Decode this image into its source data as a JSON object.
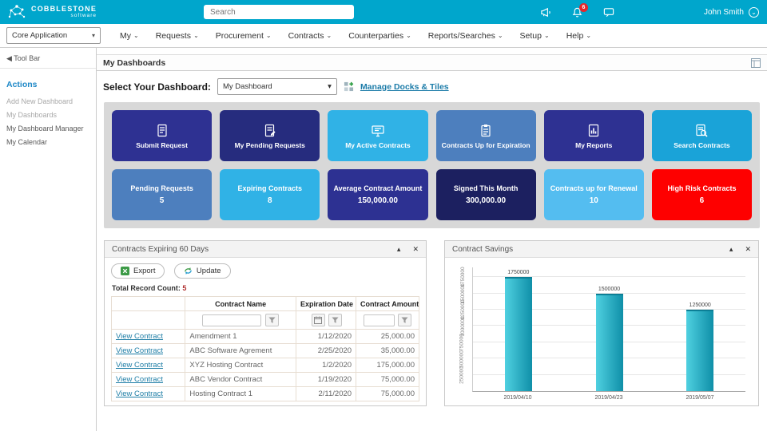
{
  "icons": {
    "caret_down": "▾",
    "nav_caret": "⌄",
    "collapse": "▴",
    "close": "✕",
    "back_arrow": "◀",
    "user_chevron": "⌄"
  },
  "header": {
    "brand_line1": "COBBLESTONE",
    "brand_line2": "software",
    "search_placeholder": "Search",
    "notification_count": "6",
    "user_name": "John Smith"
  },
  "nav": {
    "app_selector_value": "Core Application",
    "items": [
      "My",
      "Requests",
      "Procurement",
      "Contracts",
      "Counterparties",
      "Reports/Searches",
      "Setup",
      "Help"
    ]
  },
  "sidebar": {
    "toolbar_label": "Tool Bar",
    "actions_title": "Actions",
    "links": [
      "Add New Dashboard",
      "My Dashboards",
      "My Dashboard Manager",
      "My Calendar"
    ]
  },
  "dashboard": {
    "page_title": "My Dashboards",
    "select_label": "Select Your Dashboard:",
    "selected_dashboard": "My Dashboard",
    "manage_link": "Manage Docks & Tiles",
    "action_tiles": [
      {
        "label": "Submit Request",
        "icon": "submit-request",
        "color": "#2e3192"
      },
      {
        "label": "My Pending Requests",
        "icon": "pending-requests",
        "color": "#262c7e"
      },
      {
        "label": "My Active Contracts",
        "icon": "active-contracts",
        "color": "#30b2e6"
      },
      {
        "label": "Contracts Up for Expiration",
        "icon": "contracts-expiration",
        "color": "#4d7fbe"
      },
      {
        "label": "My Reports",
        "icon": "reports",
        "color": "#2e3192"
      },
      {
        "label": "Search Contracts",
        "icon": "search-contracts",
        "color": "#1aa3d8"
      }
    ],
    "stat_tiles": [
      {
        "label": "Pending Requests",
        "value": "5",
        "color": "#4d7fbe"
      },
      {
        "label": "Expiring Contracts",
        "value": "8",
        "color": "#30b2e6"
      },
      {
        "label": "Average Contract Amount",
        "value": "150,000.00",
        "color": "#2d3192"
      },
      {
        "label": "Signed This Month",
        "value": "300,000.00",
        "color": "#1c2060"
      },
      {
        "label": "Contracts up for Renewal",
        "value": "10",
        "color": "#54bdf0"
      },
      {
        "label": "High Risk Contracts",
        "value": "6",
        "color": "#fe0000"
      }
    ]
  },
  "expiring_panel": {
    "title": "Contracts Expiring 60 Days",
    "export_label": "Export",
    "update_label": "Update",
    "record_count_label": "Total Record Count:",
    "record_count_value": "5",
    "columns": [
      "",
      "Contract Name",
      "Expiration Date",
      "Contract Amount"
    ],
    "rows": [
      {
        "link": "View Contract",
        "name": "Amendment 1",
        "date": "1/12/2020",
        "amount": "25,000.00"
      },
      {
        "link": "View Contract",
        "name": "ABC Software Agrement",
        "date": "2/25/2020",
        "amount": "35,000.00"
      },
      {
        "link": "View Contract",
        "name": "XYZ Hosting Contract",
        "date": "1/2/2020",
        "amount": "175,000.00"
      },
      {
        "link": "View Contract",
        "name": "ABC Vendor Contract",
        "date": "1/19/2020",
        "amount": "75,000.00"
      },
      {
        "link": "View Contract",
        "name": "Hosting Contract 1",
        "date": "2/11/2020",
        "amount": "75,000.00"
      }
    ]
  },
  "savings_panel": {
    "title": "Contract Savings"
  },
  "chart_data": {
    "type": "bar",
    "title": "Contract Savings",
    "categories": [
      "2019/04/10",
      "2019/04/23",
      "2019/05/07"
    ],
    "values": [
      1750000,
      1500000,
      1250000
    ],
    "data_labels": [
      "1750000",
      "1500000",
      "1250000"
    ],
    "xlabel": "",
    "ylabel": "",
    "ylim": [
      0,
      1900000
    ],
    "yticks": [
      250000,
      500000,
      750000,
      1000000,
      1250000,
      1500000,
      1750000
    ],
    "grid": true,
    "legend": false,
    "bar_color_start": "#4fd0e0",
    "bar_color_end": "#0f8fa8"
  }
}
